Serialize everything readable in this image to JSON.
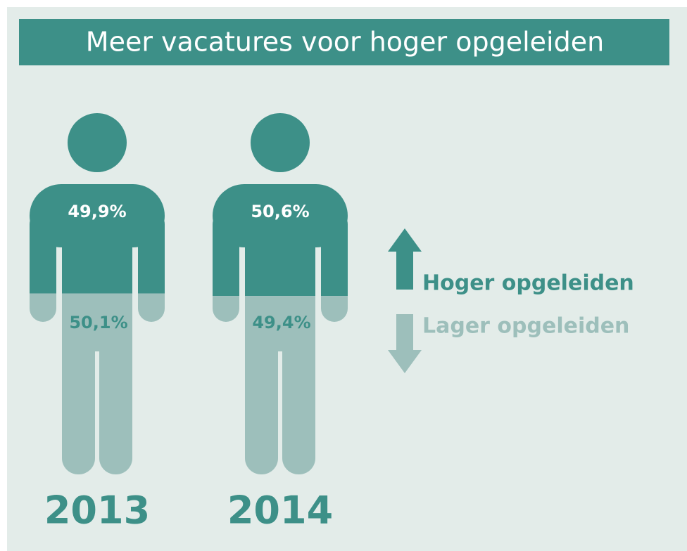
{
  "chart_data": {
    "type": "pictograph",
    "title": "Meer vacatures voor hoger opgeleiden",
    "categories": [
      "2013",
      "2014"
    ],
    "series": [
      {
        "name": "Hoger opgeleiden",
        "color": "#3d9088",
        "values": [
          49.9,
          50.6
        ],
        "value_labels": [
          "49,9%",
          "50,6%"
        ]
      },
      {
        "name": "Lager opgeleiden",
        "color": "#9dbfbb",
        "values": [
          50.1,
          49.4
        ],
        "value_labels": [
          "50,1%",
          "49,4%"
        ]
      }
    ]
  }
}
